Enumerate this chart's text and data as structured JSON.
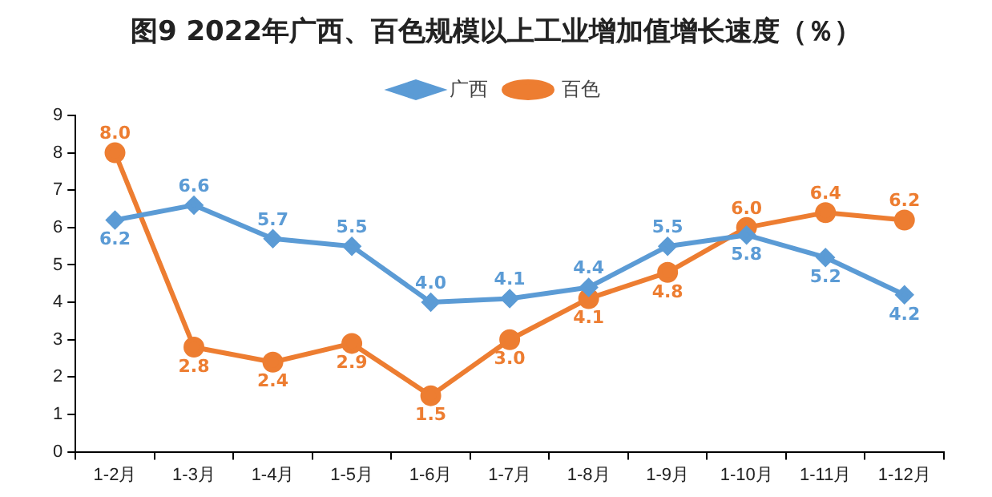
{
  "chart_data": {
    "type": "line",
    "title": "图9  2022年广西、百色规模以上工业增加值增长速度（％）",
    "categories": [
      "1-2月",
      "1-3月",
      "1-4月",
      "1-5月",
      "1-6月",
      "1-7月",
      "1-8月",
      "1-9月",
      "1-10月",
      "1-11月",
      "1-12月"
    ],
    "series": [
      {
        "name": "广西",
        "color": "#5b9bd5",
        "marker": "diamond",
        "values": [
          6.2,
          6.6,
          5.7,
          5.5,
          4.0,
          4.1,
          4.4,
          5.5,
          5.8,
          5.2,
          4.2
        ],
        "value_labels": [
          "6.2",
          "6.6",
          "5.7",
          "5.5",
          "4.0",
          "4.1",
          "4.4",
          "5.5",
          "5.8",
          "5.2",
          "4.2"
        ]
      },
      {
        "name": "百色",
        "color": "#ed7d31",
        "marker": "circle",
        "values": [
          8.0,
          2.8,
          2.4,
          2.9,
          1.5,
          3.0,
          4.1,
          4.8,
          6.0,
          6.4,
          6.2
        ],
        "value_labels": [
          "8.0",
          "2.8",
          "2.4",
          "2.9",
          "1.5",
          "3.0",
          "4.1",
          "4.8",
          "6.0",
          "6.4",
          "6.2"
        ]
      }
    ],
    "ylim": [
      0,
      9
    ],
    "yticks": [
      0,
      1,
      2,
      3,
      4,
      5,
      6,
      7,
      8,
      9
    ],
    "grid": false,
    "legend": "top",
    "line_style": "solid"
  }
}
